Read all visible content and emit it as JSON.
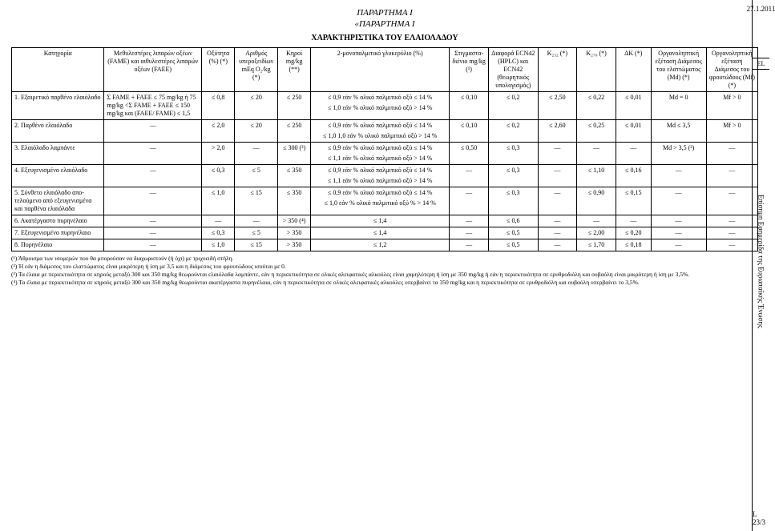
{
  "titles": {
    "annex": "ΠΑΡΑΡΤΗΜΑ I",
    "annex_quoted": "«ΠΑΡΑΡΤΗΜΑ I",
    "table_title": "ΧΑΡΑΚΤΗΡΙΣΤΙΚΑ ΤΟΥ ΕΛΑΙΟΛΑΔΟΥ"
  },
  "margin": {
    "date": "27.1.2011",
    "lang": "EL",
    "journal": "Επίσημη Εφημερίδα της Ευρωπαϊκής Ένωσης",
    "page": "L 23/3"
  },
  "headers": {
    "category": "Κατηγορία",
    "fame": "Μεθυλεστέρες λιπαρών οξέων (FAME) και αιθυλεστέρες λιπαρών οξέων (FAEE)",
    "acidity": "Οξύτητα (%) (*)",
    "peroxide": "Αριθμός υπεροξει­δίων mEq O₂/kg (*)",
    "wax": "Κηροί mg/kg (**)",
    "mono": "2-μονοπαλμιτικό γλυκερύλιο (%)",
    "stig": "Στιγμαστα­διένιο mg/kg (¹)",
    "ecn": "Διαφορά ECN42 (HPLC) και ECN42 (θεωρητικός υπολογι­σμός)",
    "k232": "K₂₃₂ (*)",
    "k270": "K₂₇₀ (*)",
    "dk": "ΔK (*)",
    "md": "Οργανοληπτική εξέταση Διάμεσος του ελαττώματος (Md) (*)",
    "mf": "Οργανοληπτική εξέταση Διάμεσος του φρουτώδους (Mf) (*)"
  },
  "rows": [
    {
      "cat": "1. Εξαιρετικό παρθένο ελαι­όλαδο",
      "fame": "Σ FAME + FAEE ≤ 75 mg/kg ή 75 mg/kg <Σ FAME + FAEE ≤ 150 mg/kg και (FAEE/ FAME) ≤ 1,5",
      "acid": "≤ 0,8",
      "perox": "≤ 20",
      "wax": "≤ 250",
      "mono": "≤ 0,9 εάν % ολικό παλμι­τικό οξύ ≤ 14 %\n≤ 1,0 εάν % ολικό παλμι­τικό οξύ > 14 %",
      "stig": "≤ 0,10",
      "ecn": "≤ 0,2",
      "k232": "≤ 2,50",
      "k270": "≤ 0,22",
      "dk": "≤ 0,01",
      "md": "Md = 0",
      "mf": "Mf > 0"
    },
    {
      "cat": "2. Παρθένο ελαιόλαδο",
      "fame": "—",
      "acid": "≤ 2,0",
      "perox": "≤ 20",
      "wax": "≤ 250",
      "mono": "≤ 0,9 εάν % ολικό παλμι­τικό οξύ ≤ 14 %\n≤ 1,0 1,0 εάν % ολικό παλμιτικό οξύ > 14 %",
      "stig": "≤ 0,10",
      "ecn": "≤ 0,2",
      "k232": "≤ 2,60",
      "k270": "≤ 0,25",
      "dk": "≤ 0,01",
      "md": "Md ≤ 3,5",
      "mf": "Mf > 0"
    },
    {
      "cat": "3. Ελαιόλαδο λαμπάντε",
      "fame": "—",
      "acid": "> 2,0",
      "perox": "—",
      "wax": "≤ 300 (³)",
      "mono": "≤ 0,9 εάν % ολικό παλμι­τικό οξύ ≤ 14 %\n≤ 1,1 εάν % ολικό παλμι­τικό οξύ > 14 %",
      "stig": "≤ 0,50",
      "ecn": "≤ 0,3",
      "k232": "—",
      "k270": "—",
      "dk": "—",
      "md": "Md > 3,5 (²)",
      "mf": "—"
    },
    {
      "cat": "4. Εξευγενισμένο ελαιόλαδο",
      "fame": "—",
      "acid": "≤ 0,3",
      "perox": "≤ 5",
      "wax": "≤ 350",
      "mono": "≤ 0,9 εάν % ολικό παλ­μιτικό οξύ ≤ 14 %\n≤ 1,1 εάν % ολικό παλμι­τικό οξύ > 14 %",
      "stig": "—",
      "ecn": "≤ 0,3",
      "k232": "—",
      "k270": "≤ 1,10",
      "dk": "≤ 0,16",
      "md": "—",
      "mf": "—"
    },
    {
      "cat": "5. Σύνθετο ελαιόλαδο απο­τελούμενο από εξευγενι­σμένα και παρθένα ελαι­όλαδα",
      "fame": "—",
      "acid": "≤ 1,0",
      "perox": "≤ 15",
      "wax": "≤ 350",
      "mono": "≤ 0,9 εάν % ολικό παλμι­τικό οξύ ≤ 14 %\n≤ 1,0 εάν % ολικό παλμι­τικό οξύ % > 14 %",
      "stig": "—",
      "ecn": "≤ 0,3",
      "k232": "—",
      "k270": "≤ 0,90",
      "dk": "≤ 0,15",
      "md": "—",
      "mf": "—"
    },
    {
      "cat": "6. Ακατέργαστο πυρηνέλαιο",
      "fame": "—",
      "acid": "—",
      "perox": "—",
      "wax": "> 350 (⁴)",
      "mono": "≤ 1,4",
      "stig": "—",
      "ecn": "≤ 0,6",
      "k232": "—",
      "k270": "—",
      "dk": "—",
      "md": "—",
      "mf": "—"
    },
    {
      "cat": "7. Εξευγενισμένο πυρηνέ­λαιο",
      "fame": "—",
      "acid": "≤ 0,3",
      "perox": "≤ 5",
      "wax": "> 350",
      "mono": "≤ 1,4",
      "stig": "—",
      "ecn": "≤ 0,5",
      "k232": "—",
      "k270": "≤ 2,00",
      "dk": "≤ 0,20",
      "md": "—",
      "mf": "—"
    },
    {
      "cat": "8. Πυρηνέλαιο",
      "fame": "—",
      "acid": "≤ 1,0",
      "perox": "≤ 15",
      "wax": "> 350",
      "mono": "≤ 1,2",
      "stig": "—",
      "ecn": "≤ 0,5",
      "k232": "—",
      "k270": "≤ 1,70",
      "dk": "≤ 0,18",
      "md": "—",
      "mf": "—"
    }
  ],
  "footnotes": {
    "f1": "(¹) Άθροισμα των ισομερών που θα μπορούσαν να διαχωριστούν (ή όχι) με τριχοειδή στήλη.",
    "f2": "(²) Ή εάν η διάμεσος του ελαττώματος είναι μικρότερη ή ίση με 3,5 και η διάμεσος του φρουτώδους ισούται με 0.",
    "f3": "(³) Τα έλαια με περιεκτικότητα σε κηρούς μεταξύ 300 και 350 mg/kg θεωρούνται ελαιόλαδα λαμπάντε, εάν η περιεκτικότητα σε ολικές αλειφατικές αλκοόλες είναι χαμηλότερη ή ίση με 350 mg/kg ή εάν η περιεκτικότητα σε ερυθροδιόλη και ουβαόλη είναι μικρότερη ή ίση με 3,5%.",
    "f4": "(⁴) Τα έλαια με περιεκτικότητα σε κηρούς μεταξύ 300 και 350 mg/kg θεωρούνται ακατέργαστα πυρηνέλαια, εάν η περιεκτικότητα σε ολικές αλειφατικές αλκοόλες υπερβαίνει τα 350 mg/kg και η περιεκτικότητα σε ερυθροδιόλη και ουβαόλη υπερβαίνει το 3,5%."
  }
}
